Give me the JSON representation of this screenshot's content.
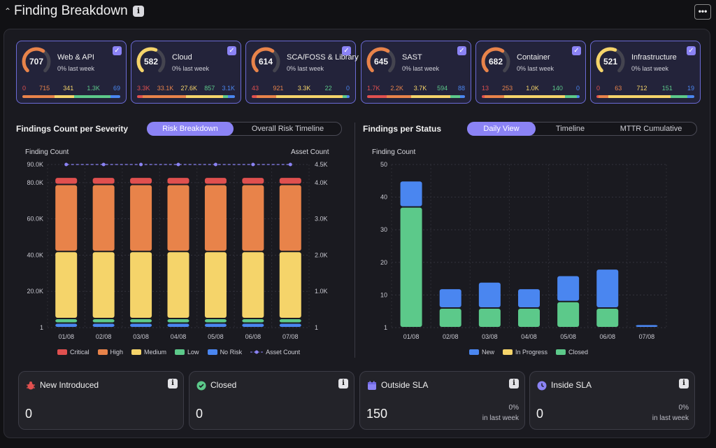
{
  "header": {
    "title": "Finding Breakdown",
    "info_icon": "i",
    "more_label": "•••"
  },
  "colors": {
    "critical": "#e0504f",
    "high": "#e8834a",
    "medium": "#f5d46a",
    "low": "#5cc98a",
    "norisk": "#4a86f0",
    "accent": "#8b83f5"
  },
  "cards": [
    {
      "name": "Web & API",
      "total": "707",
      "change": "0% last week",
      "gauge": 0.62,
      "gauge_color": "#e8834a",
      "sev": [
        "0",
        "715",
        "341",
        "1.3K",
        "69"
      ],
      "bar": [
        0,
        0.33,
        0.2,
        0.37,
        0.1
      ]
    },
    {
      "name": "Cloud",
      "total": "582",
      "change": "0% last week",
      "gauge": 0.58,
      "gauge_color": "#f5d46a",
      "sev": [
        "3.3K",
        "33.1K",
        "27.6K",
        "857",
        "3.1K"
      ],
      "bar": [
        0.06,
        0.44,
        0.38,
        0.05,
        0.07
      ]
    },
    {
      "name": "SCA/FOSS & Library",
      "total": "614",
      "change": "0% last week",
      "gauge": 0.62,
      "gauge_color": "#e8834a",
      "sev": [
        "43",
        "921",
        "3.3K",
        "22",
        "0"
      ],
      "bar": [
        0.05,
        0.2,
        0.68,
        0.04,
        0.03
      ]
    },
    {
      "name": "SAST",
      "total": "645",
      "change": "0% last week",
      "gauge": 0.62,
      "gauge_color": "#e8834a",
      "sev": [
        "1.7K",
        "2.2K",
        "3.7K",
        "594",
        "88"
      ],
      "bar": [
        0.2,
        0.25,
        0.4,
        0.1,
        0.05
      ]
    },
    {
      "name": "Container",
      "total": "682",
      "change": "0% last week",
      "gauge": 0.62,
      "gauge_color": "#e8834a",
      "sev": [
        "13",
        "253",
        "1.0K",
        "140",
        "0"
      ],
      "bar": [
        0.03,
        0.2,
        0.62,
        0.12,
        0.03
      ]
    },
    {
      "name": "Infrastructure",
      "total": "521",
      "change": "0% last week",
      "gauge": 0.58,
      "gauge_color": "#f5d46a",
      "sev": [
        "0",
        "63",
        "712",
        "151",
        "19"
      ],
      "bar": [
        0.02,
        0.1,
        0.64,
        0.17,
        0.07
      ]
    }
  ],
  "severity_section": {
    "title": "Findings Count per Severity",
    "tabs": [
      "Risk Breakdown",
      "Overall Risk Timeline"
    ],
    "y_title": "Finding Count",
    "y2_title": "Asset Count"
  },
  "status_section": {
    "title": "Findings per Status",
    "tabs": [
      "Daily View",
      "Timeline",
      "MTTR Cumulative"
    ],
    "y_title": "Finding Count"
  },
  "chart_data": [
    {
      "type": "bar",
      "stacked": true,
      "categories": [
        "01/08",
        "02/08",
        "03/08",
        "04/08",
        "05/08",
        "06/08",
        "07/08"
      ],
      "y_ticks": [
        "1",
        "20.0K",
        "40.0K",
        "60.0K",
        "80.0K",
        "90.0K"
      ],
      "y2_ticks": [
        "1",
        "1.0K",
        "2.0K",
        "3.0K",
        "4.0K",
        "4.5K"
      ],
      "ylim": [
        0,
        90000
      ],
      "y2lim": [
        0,
        4500
      ],
      "series": [
        {
          "name": "Critical",
          "color": "#e0504f",
          "values": [
            4000,
            4000,
            4000,
            4000,
            4000,
            4000,
            4000
          ]
        },
        {
          "name": "High",
          "color": "#e8834a",
          "values": [
            37000,
            37000,
            37000,
            37000,
            37000,
            37000,
            37000
          ]
        },
        {
          "name": "Medium",
          "color": "#f5d46a",
          "values": [
            37000,
            37000,
            37000,
            37000,
            37000,
            37000,
            37000
          ]
        },
        {
          "name": "Low",
          "color": "#5cc98a",
          "values": [
            2500,
            2500,
            2500,
            2500,
            2500,
            2500,
            2500
          ]
        },
        {
          "name": "No Risk",
          "color": "#4a86f0",
          "values": [
            2500,
            2500,
            2500,
            2500,
            2500,
            2500,
            2500
          ]
        }
      ],
      "line": {
        "name": "Asset Count",
        "color": "#8b83f5",
        "values": [
          4500,
          4500,
          4500,
          4500,
          4500,
          4500,
          4500
        ]
      }
    },
    {
      "type": "bar",
      "stacked": true,
      "categories": [
        "01/08",
        "02/08",
        "03/08",
        "04/08",
        "05/08",
        "06/08",
        "07/08"
      ],
      "y_ticks": [
        "1",
        "10",
        "20",
        "30",
        "40",
        "50"
      ],
      "ylim": [
        0,
        50
      ],
      "series": [
        {
          "name": "New",
          "color": "#4a86f0",
          "values": [
            8,
            6,
            8,
            6,
            8,
            12,
            1
          ]
        },
        {
          "name": "In Progress",
          "color": "#f5d46a",
          "values": [
            0,
            0,
            0,
            0,
            0,
            0,
            0
          ]
        },
        {
          "name": "Closed",
          "color": "#5cc98a",
          "values": [
            37,
            6,
            6,
            6,
            8,
            6,
            0
          ]
        }
      ]
    }
  ],
  "stats": [
    {
      "title": "New Introduced",
      "icon": "bug-icon",
      "value": "0",
      "pct": "",
      "period": ""
    },
    {
      "title": "Closed",
      "icon": "check-circle-icon",
      "value": "0",
      "pct": "",
      "period": ""
    },
    {
      "title": "Outside SLA",
      "icon": "calendar-icon",
      "value": "150",
      "pct": "0%",
      "period": "in last week"
    },
    {
      "title": "Inside SLA",
      "icon": "clock-icon",
      "value": "0",
      "pct": "0%",
      "period": "in last week"
    }
  ]
}
